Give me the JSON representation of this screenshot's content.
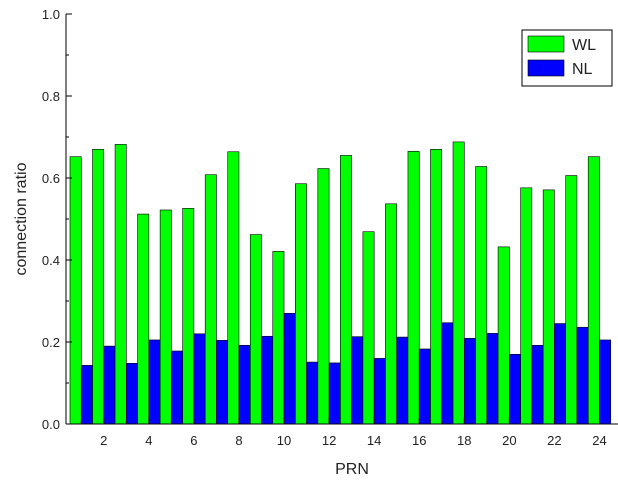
{
  "chart_data": {
    "type": "bar",
    "xlabel": "PRN",
    "ylabel": "connection ratio",
    "ylim": [
      0,
      1.0
    ],
    "yticks": [
      0.0,
      0.2,
      0.4,
      0.6,
      0.8,
      1.0
    ],
    "ytick_labels": [
      "0.0",
      "0.2",
      "0.4",
      "0.6",
      "0.8",
      "1.0"
    ],
    "x": [
      1,
      2,
      3,
      4,
      5,
      6,
      7,
      8,
      9,
      10,
      11,
      12,
      13,
      14,
      15,
      16,
      17,
      18,
      19,
      20,
      21,
      22,
      23,
      24
    ],
    "xtick_labels": [
      "2",
      "4",
      "6",
      "8",
      "10",
      "12",
      "14",
      "16",
      "18",
      "20",
      "22",
      "24"
    ],
    "xtick_values": [
      2,
      4,
      6,
      8,
      10,
      12,
      14,
      16,
      18,
      20,
      22,
      24
    ],
    "legend_position": "top-right",
    "grid": false,
    "series": [
      {
        "name": "WL",
        "color": "#00ff00",
        "values": [
          0.652,
          0.67,
          0.682,
          0.512,
          0.522,
          0.526,
          0.608,
          0.664,
          0.462,
          0.421,
          0.586,
          0.623,
          0.655,
          0.469,
          0.537,
          0.665,
          0.67,
          0.688,
          0.628,
          0.432,
          0.576,
          0.571,
          0.606,
          0.652
        ]
      },
      {
        "name": "NL",
        "color": "#0000ff",
        "values": [
          0.143,
          0.19,
          0.148,
          0.205,
          0.178,
          0.22,
          0.204,
          0.192,
          0.214,
          0.27,
          0.151,
          0.149,
          0.213,
          0.16,
          0.212,
          0.183,
          0.247,
          0.209,
          0.221,
          0.17,
          0.192,
          0.245,
          0.236,
          0.205
        ]
      }
    ]
  }
}
